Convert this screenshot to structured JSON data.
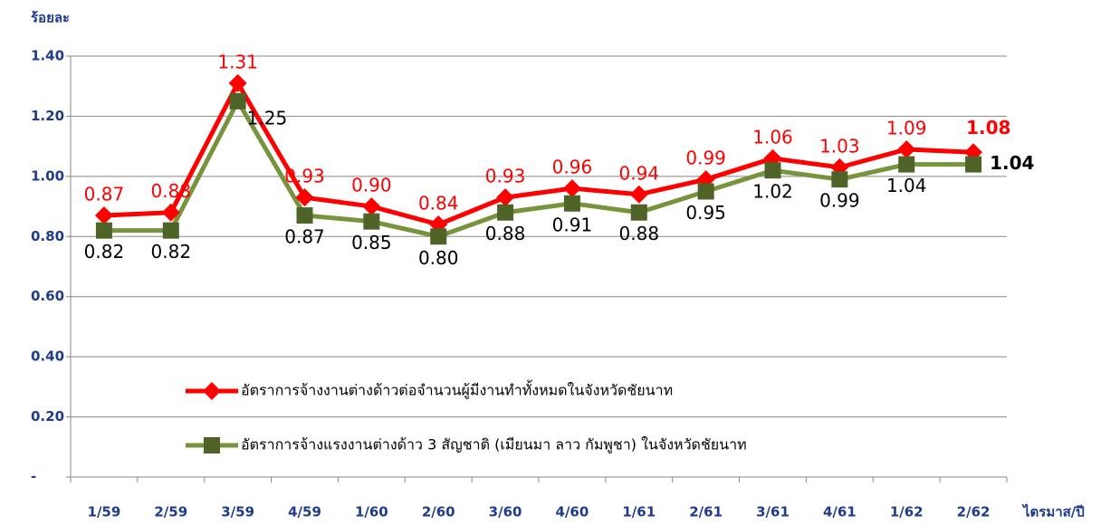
{
  "chart_data": {
    "type": "line",
    "y_axis_label": "ร้อยละ",
    "x_axis_label": "ไตรมาส/ปี",
    "categories": [
      "1/59",
      "2/59",
      "3/59",
      "4/59",
      "1/60",
      "2/60",
      "3/60",
      "4/60",
      "1/61",
      "2/61",
      "3/61",
      "4/61",
      "1/62",
      "2/62"
    ],
    "series": [
      {
        "name": "อัตราการจ้างงานต่างด้าวต่อจำนวนผู้มีงานทำทั้งหมดในจังหวัดชัยนาท",
        "color": "#ff0000",
        "values": [
          0.87,
          0.88,
          1.31,
          0.93,
          0.9,
          0.84,
          0.93,
          0.96,
          0.94,
          0.99,
          1.06,
          1.03,
          1.09,
          1.08
        ],
        "value_labels": [
          "0.87",
          "0.88",
          "1.31",
          "0.93",
          "0.90",
          "0.84",
          "0.93",
          "0.96",
          "0.94",
          "0.99",
          "1.06",
          "1.03",
          "1.09",
          "1.08"
        ]
      },
      {
        "name": "อัตราการจ้างแรงงานต่างด้าว 3 สัญชาติ (เมียนมา ลาว กัมพูชา) ในจังหวัดชัยนาท",
        "color": "#77933c",
        "marker_color": "#4f6228",
        "values": [
          0.82,
          0.82,
          1.25,
          0.87,
          0.85,
          0.8,
          0.88,
          0.91,
          0.88,
          0.95,
          1.02,
          0.99,
          1.04,
          1.04
        ],
        "value_labels": [
          "0.82",
          "0.82",
          "1.25",
          "0.87",
          "0.85",
          "0.80",
          "0.88",
          "0.91",
          "0.88",
          "0.95",
          "1.02",
          "0.99",
          "1.04",
          "1.04"
        ]
      }
    ],
    "ylim": [
      0,
      1.4
    ],
    "yticks": [
      {
        "value": 0,
        "label": "-"
      },
      {
        "value": 0.2,
        "label": "0.20"
      },
      {
        "value": 0.4,
        "label": "0.40"
      },
      {
        "value": 0.6,
        "label": "0.60"
      },
      {
        "value": 0.8,
        "label": "0.80"
      },
      {
        "value": 1.0,
        "label": "1.00"
      },
      {
        "value": 1.2,
        "label": "1.20"
      },
      {
        "value": 1.4,
        "label": "1.40"
      }
    ],
    "grid": true
  }
}
